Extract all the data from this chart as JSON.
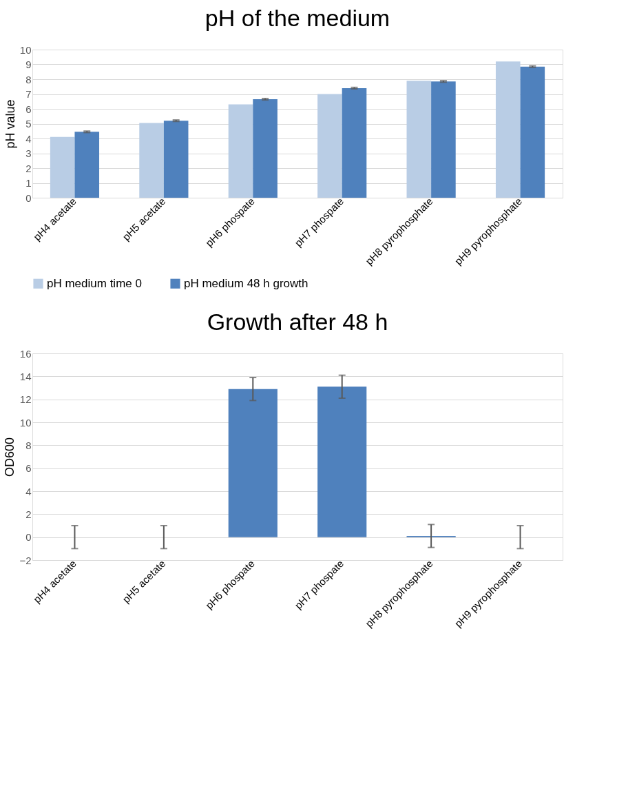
{
  "chart_data": [
    {
      "type": "bar",
      "title": "pH of the medium",
      "ylabel": "pH value",
      "categories": [
        "pH4 acetate",
        "pH5 acetate",
        "pH6 phospate",
        "pH7 phospate",
        "pH8 pyrophosphate",
        "pH9 pyrophosphate"
      ],
      "ylim": [
        0,
        10
      ],
      "yticks": [
        0,
        1,
        2,
        3,
        4,
        5,
        6,
        7,
        8,
        9,
        10
      ],
      "grid": "y",
      "legend": "bottom",
      "series": [
        {
          "name": "pH medium time 0",
          "color": "#b9cde5",
          "values": [
            4.1,
            5.05,
            6.3,
            7.0,
            7.9,
            9.2
          ]
        },
        {
          "name": "pH medium 48 h growth",
          "color": "#4f81bd",
          "values": [
            4.45,
            5.2,
            6.65,
            7.4,
            7.85,
            8.85
          ],
          "errors": [
            0.05,
            0.05,
            0.05,
            0.05,
            0.05,
            0.05
          ]
        }
      ]
    },
    {
      "type": "bar",
      "title": "Growth after 48 h",
      "ylabel": "OD600",
      "categories": [
        "pH4 acetate",
        "pH5 acetate",
        "pH6 phospate",
        "pH7 phospate",
        "pH8 pyrophosphate",
        "pH9 pyrophosphate"
      ],
      "ylim": [
        -2,
        16
      ],
      "yticks": [
        -2,
        0,
        2,
        4,
        6,
        8,
        10,
        12,
        14,
        16
      ],
      "grid": "y",
      "series": [
        {
          "color": "#4f81bd",
          "values": [
            0,
            0,
            12.9,
            13.1,
            0.1,
            0
          ],
          "errors": [
            1,
            1,
            1,
            1,
            1,
            1
          ]
        }
      ]
    }
  ]
}
